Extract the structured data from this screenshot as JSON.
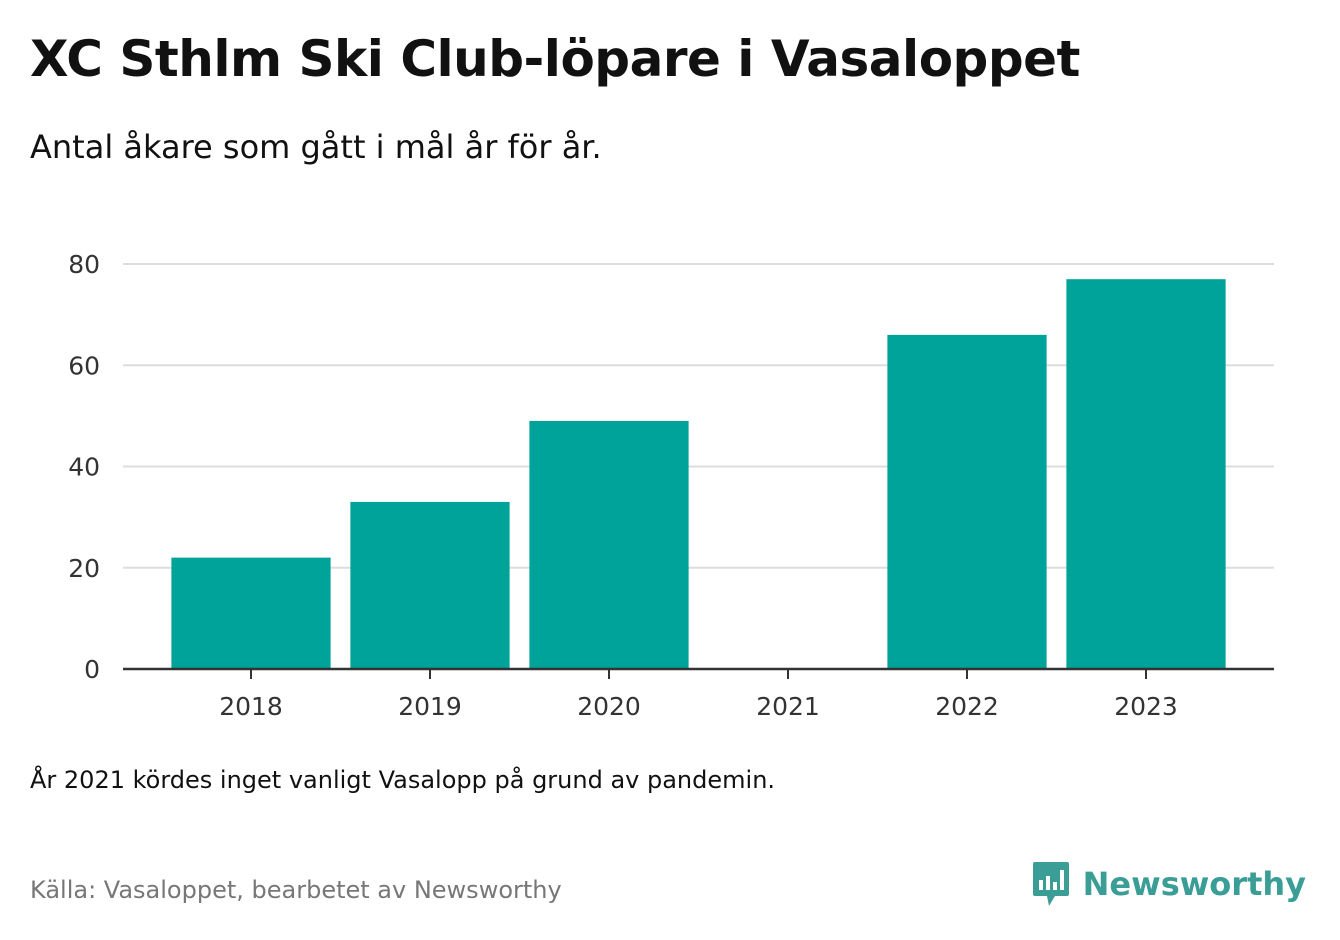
{
  "header": {
    "title": "XC Sthlm Ski Club-löpare i Vasaloppet",
    "subtitle": "Antal åkare som gått i mål år för år."
  },
  "chart_data": {
    "type": "bar",
    "categories": [
      "2018",
      "2019",
      "2020",
      "2021",
      "2022",
      "2023"
    ],
    "values": [
      22,
      33,
      49,
      0,
      66,
      77
    ],
    "yticks": [
      0,
      20,
      40,
      60,
      80
    ],
    "ylim": [
      0,
      80
    ],
    "grid": true,
    "bar_color": "#00a39a"
  },
  "footer": {
    "note": "År 2021 kördes inget vanligt Vasalopp på grund av pandemin.",
    "source": "Källa: Vasaloppet, bearbetet av Newsworthy",
    "brand": "Newsworthy",
    "brand_color": "#3a9e96"
  }
}
